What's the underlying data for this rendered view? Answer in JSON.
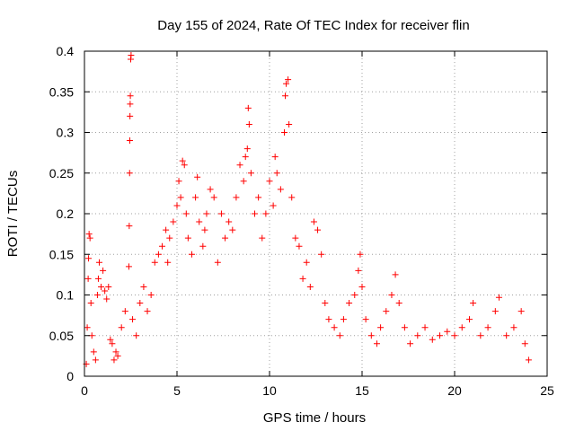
{
  "chart_data": {
    "type": "scatter",
    "title": "Day 155 of 2024, Rate Of TEC Index for receiver flin",
    "xlabel": "GPS time / hours",
    "ylabel": "ROTI / TECUs",
    "xlim": [
      0,
      25
    ],
    "ylim": [
      0,
      0.4
    ],
    "xticks": [
      0,
      5,
      10,
      15,
      20,
      25
    ],
    "xtick_labels": [
      "0",
      "5",
      "10",
      "15",
      "20",
      "25"
    ],
    "yticks": [
      0,
      0.05,
      0.1,
      0.15,
      0.2,
      0.25,
      0.3,
      0.35,
      0.4
    ],
    "ytick_labels": [
      "0",
      "0.05",
      "0.1",
      "0.15",
      "0.2",
      "0.25",
      "0.3",
      "0.35",
      "0.4"
    ],
    "grid": true,
    "marker": "plus",
    "color": "#ff0000",
    "series": [
      {
        "points": [
          [
            0.1,
            0.015
          ],
          [
            0.15,
            0.06
          ],
          [
            0.2,
            0.12
          ],
          [
            0.22,
            0.145
          ],
          [
            0.25,
            0.175
          ],
          [
            0.3,
            0.17
          ],
          [
            0.35,
            0.09
          ],
          [
            0.4,
            0.05
          ],
          [
            0.5,
            0.03
          ],
          [
            0.6,
            0.02
          ],
          [
            0.7,
            0.1
          ],
          [
            0.75,
            0.12
          ],
          [
            0.8,
            0.14
          ],
          [
            0.9,
            0.11
          ],
          [
            1.0,
            0.13
          ],
          [
            1.1,
            0.105
          ],
          [
            1.2,
            0.095
          ],
          [
            1.3,
            0.11
          ],
          [
            1.4,
            0.045
          ],
          [
            1.5,
            0.04
          ],
          [
            1.6,
            0.02
          ],
          [
            1.7,
            0.03
          ],
          [
            1.8,
            0.025
          ],
          [
            2.0,
            0.06
          ],
          [
            2.2,
            0.08
          ],
          [
            2.4,
            0.135
          ],
          [
            2.42,
            0.185
          ],
          [
            2.44,
            0.25
          ],
          [
            2.45,
            0.29
          ],
          [
            2.46,
            0.32
          ],
          [
            2.47,
            0.335
          ],
          [
            2.48,
            0.345
          ],
          [
            2.5,
            0.39
          ],
          [
            2.52,
            0.395
          ],
          [
            2.6,
            0.07
          ],
          [
            2.8,
            0.05
          ],
          [
            3.0,
            0.09
          ],
          [
            3.2,
            0.11
          ],
          [
            3.4,
            0.08
          ],
          [
            3.6,
            0.1
          ],
          [
            3.8,
            0.14
          ],
          [
            4.0,
            0.15
          ],
          [
            4.2,
            0.16
          ],
          [
            4.4,
            0.18
          ],
          [
            4.5,
            0.14
          ],
          [
            4.6,
            0.17
          ],
          [
            4.8,
            0.19
          ],
          [
            5.0,
            0.21
          ],
          [
            5.1,
            0.24
          ],
          [
            5.2,
            0.22
          ],
          [
            5.3,
            0.265
          ],
          [
            5.4,
            0.26
          ],
          [
            5.5,
            0.2
          ],
          [
            5.6,
            0.17
          ],
          [
            5.8,
            0.15
          ],
          [
            6.0,
            0.22
          ],
          [
            6.1,
            0.245
          ],
          [
            6.2,
            0.19
          ],
          [
            6.4,
            0.16
          ],
          [
            6.5,
            0.18
          ],
          [
            6.6,
            0.2
          ],
          [
            6.8,
            0.23
          ],
          [
            7.0,
            0.22
          ],
          [
            7.2,
            0.14
          ],
          [
            7.4,
            0.2
          ],
          [
            7.6,
            0.17
          ],
          [
            7.8,
            0.19
          ],
          [
            8.0,
            0.18
          ],
          [
            8.2,
            0.22
          ],
          [
            8.4,
            0.26
          ],
          [
            8.6,
            0.24
          ],
          [
            8.7,
            0.27
          ],
          [
            8.8,
            0.28
          ],
          [
            8.85,
            0.33
          ],
          [
            8.9,
            0.31
          ],
          [
            9.0,
            0.25
          ],
          [
            9.2,
            0.2
          ],
          [
            9.4,
            0.22
          ],
          [
            9.6,
            0.17
          ],
          [
            9.8,
            0.2
          ],
          [
            10.0,
            0.24
          ],
          [
            10.2,
            0.21
          ],
          [
            10.3,
            0.27
          ],
          [
            10.4,
            0.25
          ],
          [
            10.6,
            0.23
          ],
          [
            10.8,
            0.3
          ],
          [
            10.85,
            0.345
          ],
          [
            10.9,
            0.36
          ],
          [
            11.0,
            0.365
          ],
          [
            11.05,
            0.31
          ],
          [
            11.2,
            0.22
          ],
          [
            11.4,
            0.17
          ],
          [
            11.6,
            0.16
          ],
          [
            11.8,
            0.12
          ],
          [
            12.0,
            0.14
          ],
          [
            12.2,
            0.11
          ],
          [
            12.4,
            0.19
          ],
          [
            12.6,
            0.18
          ],
          [
            12.8,
            0.15
          ],
          [
            13.0,
            0.09
          ],
          [
            13.2,
            0.07
          ],
          [
            13.5,
            0.06
          ],
          [
            13.8,
            0.05
          ],
          [
            14.0,
            0.07
          ],
          [
            14.3,
            0.09
          ],
          [
            14.6,
            0.1
          ],
          [
            14.8,
            0.13
          ],
          [
            14.9,
            0.15
          ],
          [
            15.0,
            0.11
          ],
          [
            15.2,
            0.07
          ],
          [
            15.5,
            0.05
          ],
          [
            15.8,
            0.04
          ],
          [
            16.0,
            0.06
          ],
          [
            16.3,
            0.08
          ],
          [
            16.6,
            0.1
          ],
          [
            16.8,
            0.125
          ],
          [
            17.0,
            0.09
          ],
          [
            17.3,
            0.06
          ],
          [
            17.6,
            0.04
          ],
          [
            18.0,
            0.05
          ],
          [
            18.4,
            0.06
          ],
          [
            18.8,
            0.045
          ],
          [
            19.2,
            0.05
          ],
          [
            19.6,
            0.055
          ],
          [
            20.0,
            0.05
          ],
          [
            20.4,
            0.06
          ],
          [
            20.8,
            0.07
          ],
          [
            21.0,
            0.09
          ],
          [
            21.4,
            0.05
          ],
          [
            21.8,
            0.06
          ],
          [
            22.2,
            0.08
          ],
          [
            22.4,
            0.097
          ],
          [
            22.8,
            0.05
          ],
          [
            23.2,
            0.06
          ],
          [
            23.6,
            0.08
          ],
          [
            23.8,
            0.04
          ],
          [
            24.0,
            0.02
          ]
        ]
      }
    ]
  }
}
